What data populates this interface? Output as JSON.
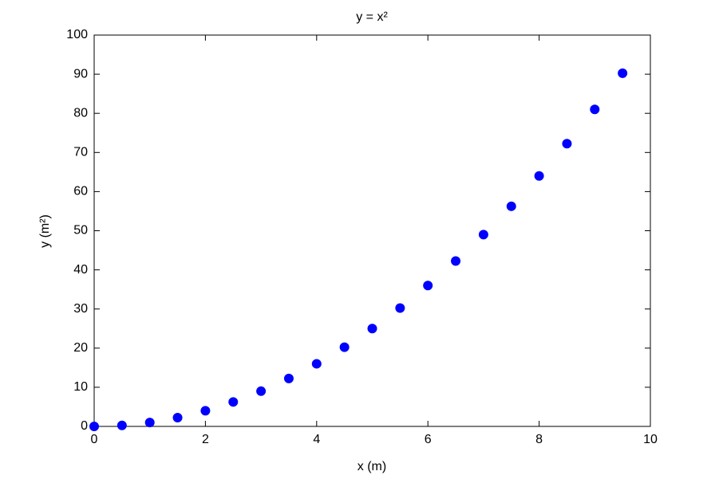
{
  "chart_data": {
    "type": "scatter",
    "title": "y = x²",
    "x_label": "x (m)",
    "y_label": "y (m²)",
    "series": [
      {
        "color": "#0000ff",
        "x": [
          0,
          0.5,
          1,
          1.5,
          2,
          2.5,
          3,
          3.5,
          4,
          4.5,
          5,
          5.5,
          6,
          6.5,
          7,
          7.5,
          8,
          8.5,
          9,
          9.5
        ],
        "values": [
          0,
          0.25,
          1,
          2.25,
          4,
          6.25,
          9,
          12.25,
          16,
          20.25,
          25,
          30.25,
          36,
          42.25,
          49,
          56.25,
          64,
          72.25,
          81,
          90.25
        ]
      }
    ],
    "xlim": [
      0,
      10
    ],
    "xticks": [
      0,
      2,
      4,
      6,
      8,
      10
    ],
    "ylim": [
      0,
      100
    ],
    "yticks": [
      0,
      10,
      20,
      30,
      40,
      50,
      60,
      70,
      80,
      90,
      100
    ],
    "grid": false
  }
}
